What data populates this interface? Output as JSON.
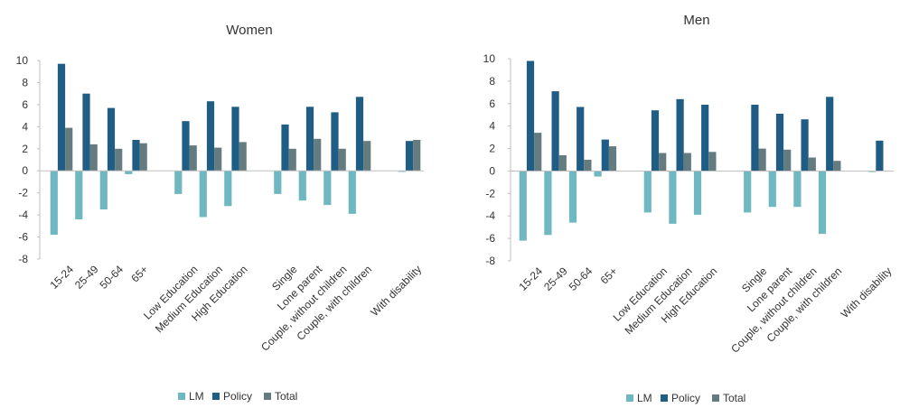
{
  "chart_data": [
    {
      "type": "bar",
      "title": "Women",
      "ylim": [
        -8,
        10
      ],
      "yticks": [
        -8,
        -6,
        -4,
        -2,
        0,
        2,
        4,
        6,
        8,
        10
      ],
      "grid": false,
      "legend_position": "bottom",
      "categories": [
        "15-24",
        "25-49",
        "50-64",
        "65+",
        "",
        "Low Education",
        "Medium Education",
        "High Education",
        "",
        "Single",
        "Lone parent",
        "Couple, without children",
        "Couple, with children",
        "",
        "With disability"
      ],
      "series": [
        {
          "name": "LM",
          "color": "#6fb8c2",
          "values": [
            -5.8,
            -4.4,
            -3.5,
            -0.3,
            null,
            -2.1,
            -4.2,
            -3.2,
            null,
            -2.1,
            -2.7,
            -3.1,
            -3.9,
            null,
            -0.1
          ]
        },
        {
          "name": "Policy",
          "color": "#1f5d85",
          "values": [
            9.7,
            7.0,
            5.7,
            2.8,
            null,
            4.5,
            6.3,
            5.8,
            null,
            4.2,
            5.8,
            5.3,
            6.7,
            null,
            2.7
          ]
        },
        {
          "name": "Total",
          "color": "#647c7f",
          "values": [
            3.9,
            2.4,
            2.0,
            2.5,
            null,
            2.3,
            2.1,
            2.6,
            null,
            2.0,
            2.9,
            2.0,
            2.7,
            null,
            2.8
          ]
        }
      ]
    },
    {
      "type": "bar",
      "title": "Men",
      "ylim": [
        -8,
        10
      ],
      "yticks": [
        -8,
        -6,
        -4,
        -2,
        0,
        2,
        4,
        6,
        8,
        10
      ],
      "grid": false,
      "legend_position": "bottom",
      "categories": [
        "15-24",
        "25-49",
        "50-64",
        "65+",
        "",
        "Low Education",
        "Medium Education",
        "High Education",
        "",
        "Single",
        "Lone parent",
        "Couple, without children",
        "Couple, with children",
        "",
        "With disability"
      ],
      "series": [
        {
          "name": "LM",
          "color": "#6fb8c2",
          "values": [
            -6.2,
            -5.7,
            -4.6,
            -0.5,
            null,
            -3.7,
            -4.7,
            -3.9,
            null,
            -3.7,
            -3.2,
            -3.2,
            -5.6,
            null,
            -0.1
          ]
        },
        {
          "name": "Policy",
          "color": "#1f5d85",
          "values": [
            9.8,
            7.1,
            5.7,
            2.8,
            null,
            5.4,
            6.4,
            5.9,
            null,
            5.9,
            5.1,
            4.6,
            6.6,
            null,
            2.7
          ]
        },
        {
          "name": "Total",
          "color": "#647c7f",
          "values": [
            3.4,
            1.4,
            1.0,
            2.2,
            null,
            1.6,
            1.6,
            1.7,
            null,
            2.0,
            1.9,
            1.2,
            0.9,
            null,
            0.0
          ]
        }
      ]
    }
  ]
}
